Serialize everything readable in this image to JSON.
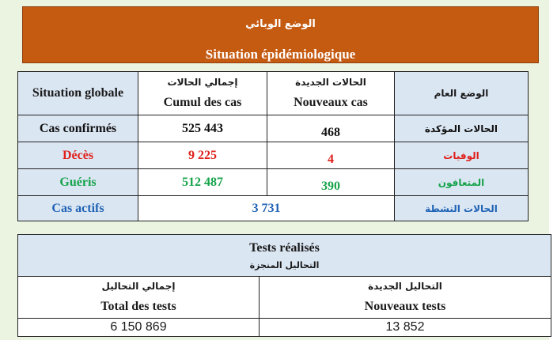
{
  "banner": {
    "title_ar": "الوضع الوبائي",
    "title_fr": "Situation épidémiologique"
  },
  "situation": {
    "headers": {
      "global_fr": "Situation globale",
      "cumul_ar": "إجمالي الحالات",
      "cumul_fr": "Cumul des cas",
      "new_ar": "الحالات الجديدة",
      "new_fr": "Nouveaux cas",
      "general_ar": "الوضع العام"
    },
    "rows": [
      {
        "label_fr": "Cas confirmés",
        "cumul": "525 443",
        "new": "468",
        "label_ar": "الحالات المؤكدة",
        "color": "#111111"
      },
      {
        "label_fr": "Décès",
        "cumul": "9 225",
        "new": "4",
        "label_ar": "الوفيات",
        "color": "#e0201b"
      },
      {
        "label_fr": "Guéris",
        "cumul": "512 487",
        "new": "390",
        "label_ar": "المتعافون",
        "color": "#16a34a"
      }
    ],
    "active": {
      "label_fr": "Cas actifs",
      "value": "3 731",
      "label_ar": "الحالات النشطة",
      "color": "#1f63b4"
    }
  },
  "tests": {
    "title_fr": "Tests réalisés",
    "title_ar": "التحاليل المنجزة",
    "total_ar": "إجمالي التحاليل",
    "total_fr": "Total des tests",
    "new_ar": "التحاليل الجديدة",
    "new_fr": "Nouveaux tests",
    "total_value": "6 150 869",
    "new_value": "13 852"
  }
}
